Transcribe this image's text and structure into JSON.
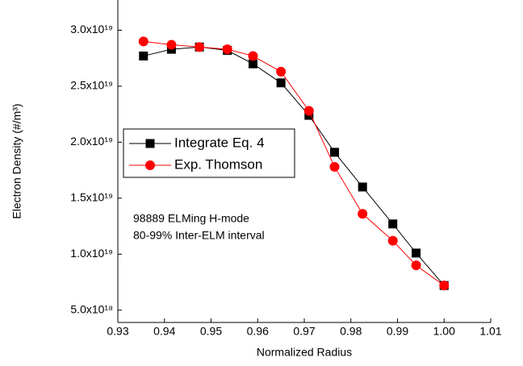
{
  "chart_data": {
    "type": "line",
    "xlabel": "Normalized Radius",
    "ylabel": "Electron Density (#/m³)",
    "x": [
      0.9355,
      0.9415,
      0.9475,
      0.9535,
      0.959,
      0.965,
      0.971,
      0.9765,
      0.9825,
      0.989,
      0.994,
      1.0
    ],
    "series": [
      {
        "name": "Integrate Eq. 4",
        "color": "#000000",
        "marker": "square",
        "values": [
          2.77e+19,
          2.83e+19,
          2.85e+19,
          2.82e+19,
          2.7e+19,
          2.53e+19,
          2.24e+19,
          1.91e+19,
          1.6e+19,
          1.27e+19,
          1.01e+19,
          7.2e+18
        ]
      },
      {
        "name": "Exp. Thomson",
        "color": "#ff0000",
        "marker": "circle",
        "values": [
          2.9e+19,
          2.87e+19,
          2.85e+19,
          2.83e+19,
          2.77e+19,
          2.63e+19,
          2.28e+19,
          1.78e+19,
          1.36e+19,
          1.12e+19,
          9e+18,
          7.2e+18
        ]
      }
    ],
    "annotations": [
      "98889 ELMing H-mode",
      "80-99% Inter-ELM interval"
    ],
    "xlim": [
      0.93,
      1.01
    ],
    "xticks": [
      0.93,
      0.94,
      0.95,
      0.96,
      0.97,
      0.98,
      0.99,
      {
        "value": 1.0,
        "label": "1.00"
      },
      1.01
    ],
    "ylim": [
      3.9e+18,
      3.27e+19
    ],
    "yticks": [
      {
        "value": 5e+18,
        "label": "5.0x10¹⁸"
      },
      {
        "value": 1e+19,
        "label": "1.0x10¹⁹"
      },
      {
        "value": 1.5e+19,
        "label": "1.5x10¹⁹"
      },
      {
        "value": 2e+19,
        "label": "2.0x10¹⁹"
      },
      {
        "value": 2.5e+19,
        "label": "2.5x10¹⁹"
      },
      {
        "value": 3e+19,
        "label": "3.0x10¹⁹"
      }
    ],
    "grid": false
  }
}
